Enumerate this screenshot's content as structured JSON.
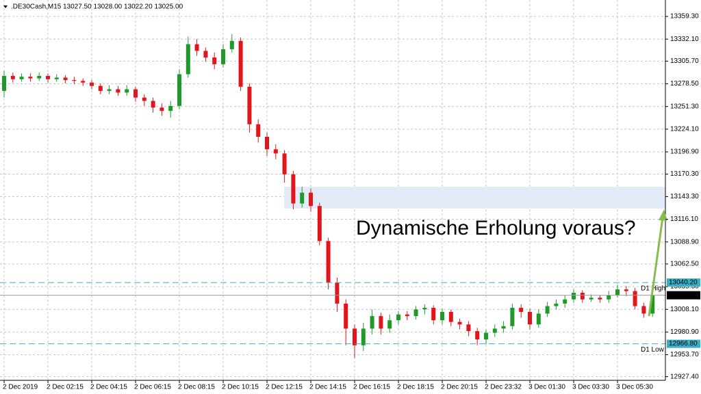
{
  "chart_data": {
    "type": "candlestick",
    "symbol": ".DE30Cash,M15",
    "quote": "13027.50 13028.00 13022.20 13025.00",
    "annotation": "Dynamische Erholung voraus?",
    "categories": [
      "2 Dec 2019",
      null,
      null,
      null,
      null,
      "2 Dec 02:15",
      null,
      null,
      null,
      null,
      "2 Dec 04:15",
      null,
      null,
      null,
      null,
      "2 Dec 06:15",
      null,
      null,
      null,
      null,
      "2 Dec 08:15",
      null,
      null,
      null,
      null,
      "2 Dec 10:15",
      null,
      null,
      null,
      null,
      "2 Dec 12:15",
      null,
      null,
      null,
      null,
      "2 Dec 14:15",
      null,
      null,
      null,
      null,
      "2 Dec 16:15",
      null,
      null,
      null,
      null,
      "2 Dec 18:15",
      null,
      null,
      null,
      null,
      "2 Dec 20:15",
      null,
      null,
      null,
      null,
      "2 Dec 23:32",
      null,
      null,
      null,
      null,
      "3 Dec 01:30",
      null,
      null,
      null,
      null,
      "3 Dec 03:30",
      null,
      null,
      null,
      null,
      "3 Dec 05:30",
      null,
      null,
      null,
      null
    ],
    "open": [
      13270,
      13288,
      13284,
      13287,
      13285,
      13288,
      13284,
      13286,
      13283,
      13282,
      13280,
      13276,
      13270,
      13272,
      13268,
      13272,
      13262,
      13258,
      13250,
      13246,
      13252,
      13290,
      13326,
      13318,
      13310,
      13302,
      13320,
      13330,
      13275,
      13230,
      13215,
      13200,
      13195,
      13170,
      13135,
      13148,
      13132,
      13090,
      13040,
      13015,
      12985,
      12965,
      12985,
      13000,
      12985,
      12995,
      13002,
      13000,
      13008,
      13010,
      12995,
      13005,
      12993,
      12990,
      12982,
      12972,
      12980,
      12985,
      12988,
      13010,
      13005,
      12990,
      13003,
      13012,
      13015,
      13020,
      13028,
      13020,
      13022,
      13020,
      13025,
      13032,
      13030,
      13012,
      13003
    ],
    "high": [
      13294,
      13292,
      13291,
      13291,
      13292,
      13291,
      13290,
      13289,
      13287,
      13285,
      13283,
      13279,
      13277,
      13276,
      13277,
      13275,
      13266,
      13262,
      13255,
      13258,
      13296,
      13335,
      13332,
      13322,
      13316,
      13326,
      13338,
      13334,
      13279,
      13236,
      13220,
      13206,
      13199,
      13174,
      13155,
      13153,
      13136,
      13094,
      13046,
      13020,
      12990,
      12992,
      13008,
      13004,
      13002,
      13006,
      13006,
      13012,
      13014,
      13013,
      13009,
      13008,
      12997,
      12994,
      12986,
      12984,
      12990,
      12994,
      13015,
      13014,
      13009,
      13008,
      13017,
      13020,
      13025,
      13032,
      13031,
      13026,
      13025,
      13030,
      13037,
      13036,
      13034,
      13016,
      13030
    ],
    "low": [
      13262,
      13280,
      13281,
      13281,
      13282,
      13280,
      13281,
      13279,
      13278,
      13276,
      13272,
      13266,
      13266,
      13264,
      13264,
      13257,
      13252,
      13244,
      13240,
      13238,
      13248,
      13286,
      13312,
      13305,
      13296,
      13298,
      13316,
      13270,
      13220,
      13208,
      13192,
      13188,
      13160,
      13128,
      13130,
      13125,
      13085,
      13032,
      13005,
      12965,
      12950,
      12958,
      12978,
      12978,
      12980,
      12990,
      12995,
      12996,
      13002,
      12990,
      12990,
      12988,
      12984,
      12976,
      12965,
      12966,
      12975,
      12980,
      12984,
      12998,
      12984,
      12986,
      12999,
      13008,
      13010,
      13016,
      13016,
      13017,
      13016,
      13016,
      13022,
      13024,
      13008,
      12998,
      12999
    ],
    "close": [
      13288,
      13284,
      13287,
      13285,
      13288,
      13284,
      13286,
      13283,
      13282,
      13280,
      13276,
      13270,
      13272,
      13268,
      13272,
      13262,
      13258,
      13250,
      13246,
      13252,
      13290,
      13326,
      13318,
      13310,
      13302,
      13320,
      13330,
      13275,
      13230,
      13215,
      13200,
      13195,
      13170,
      13135,
      13148,
      13132,
      13090,
      13040,
      13015,
      12985,
      12965,
      12985,
      13000,
      12985,
      12995,
      13002,
      13000,
      13008,
      13010,
      12995,
      13005,
      12993,
      12990,
      12982,
      12972,
      12980,
      12985,
      12988,
      13010,
      13005,
      12990,
      13003,
      13012,
      13015,
      13020,
      13028,
      13020,
      13022,
      13020,
      13025,
      13032,
      13030,
      13012,
      13003,
      13025
    ],
    "up_color": "#1f9a2a",
    "down_color": "#e3141b",
    "ylim": [
      12923,
      13379
    ],
    "yticks": [
      {
        "value": 12927.4,
        "label": "12927.40"
      },
      {
        "value": 12953.7,
        "label": "12953.70"
      },
      {
        "value": 12980.9,
        "label": "12980.90"
      },
      {
        "value": 13008.1,
        "label": "13008.10"
      },
      {
        "value": 13035.3,
        "label": "13035.30"
      },
      {
        "value": 13062.5,
        "label": "13062.50"
      },
      {
        "value": 13088.9,
        "label": "13088.90"
      },
      {
        "value": 13116.1,
        "label": "13116.10"
      },
      {
        "value": 13143.3,
        "label": "13143.30"
      },
      {
        "value": 13170.3,
        "label": "13170.30"
      },
      {
        "value": 13196.9,
        "label": "13196.90"
      },
      {
        "value": 13224.1,
        "label": "13224.10"
      },
      {
        "value": 13251.3,
        "label": "13251.30"
      },
      {
        "value": 13278.5,
        "label": "13278.50"
      },
      {
        "value": 13305.7,
        "label": "13305.70"
      },
      {
        "value": 13332.1,
        "label": "13332.10"
      },
      {
        "value": 13359.3,
        "label": "13359.30"
      }
    ],
    "grid": true,
    "zone": {
      "from": 13129,
      "to": 13155,
      "color": "#e4ebf8"
    },
    "levels": [
      {
        "name": "D1 High",
        "value": 13040.2,
        "label": "13040.20",
        "color": "#3aaec6"
      },
      {
        "name": "D1 Low",
        "value": 12966.8,
        "label": "12966.80",
        "color": "#3aaec6"
      }
    ],
    "bid": {
      "value": 13025,
      "label": "13025.00",
      "color": "#9a9a9a"
    }
  }
}
